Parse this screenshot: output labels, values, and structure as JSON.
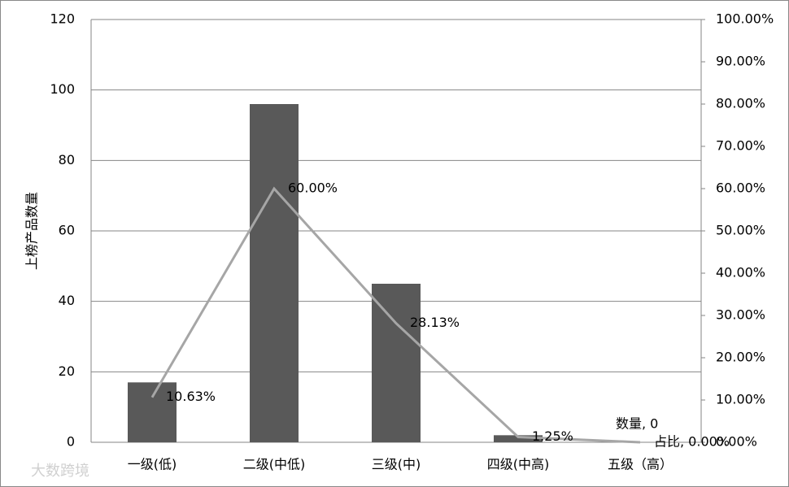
{
  "chart_data": {
    "type": "bar-line",
    "y_label": "上榜产品数量",
    "watermark": "大数跨境",
    "categories": [
      "一级(低)",
      "二级(中低)",
      "三级(中)",
      "四级(中高)",
      "五级（高）"
    ],
    "series": [
      {
        "name": "数量",
        "type": "bar",
        "color": "#595959",
        "values": [
          17,
          96,
          45,
          2,
          0
        ],
        "value_labels": [
          null,
          null,
          null,
          null,
          "数量, 0"
        ]
      },
      {
        "name": "占比",
        "type": "line",
        "axis": "y2",
        "color": "#a6a6a6",
        "values": [
          10.63,
          60.0,
          28.13,
          1.25,
          0.0
        ],
        "value_labels": [
          "10.63%",
          "60.00%",
          "28.13%",
          "1.25%",
          "占比, 0.00%"
        ]
      }
    ],
    "ylim": [
      0,
      120
    ],
    "yticks": [
      0,
      20,
      40,
      60,
      80,
      100,
      120
    ],
    "y2lim": [
      0,
      100
    ],
    "y2ticks": [
      {
        "value": 0,
        "label": "0.00%"
      },
      {
        "value": 10,
        "label": "10.00%"
      },
      {
        "value": 20,
        "label": "20.00%"
      },
      {
        "value": 30,
        "label": "30.00%"
      },
      {
        "value": 40,
        "label": "40.00%"
      },
      {
        "value": 50,
        "label": "50.00%"
      },
      {
        "value": 60,
        "label": "60.00%"
      },
      {
        "value": 70,
        "label": "70.00%"
      },
      {
        "value": 80,
        "label": "80.00%"
      },
      {
        "value": 90,
        "label": "90.00%"
      },
      {
        "value": 100,
        "label": "100.00%"
      }
    ],
    "grid": true
  }
}
